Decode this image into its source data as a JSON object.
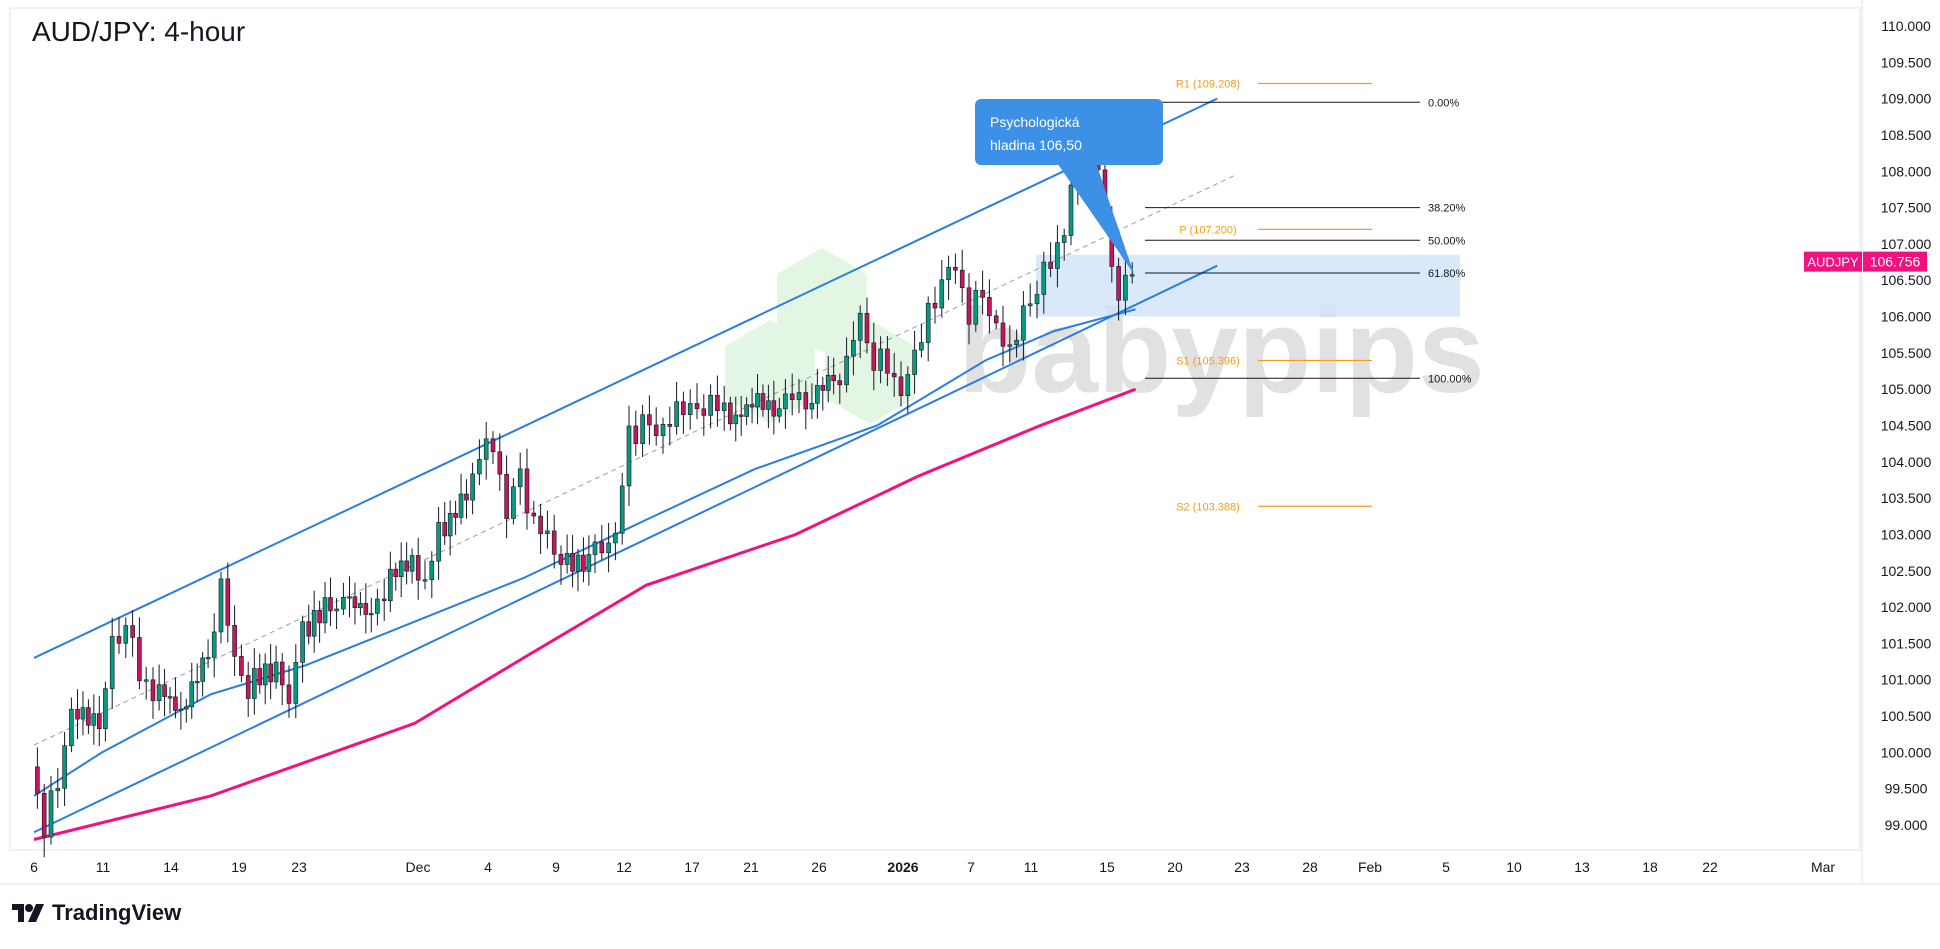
{
  "title": "AUD/JPY: 4-hour",
  "brand": {
    "logo_text": "TradingView",
    "watermark_text": "babypips"
  },
  "colors": {
    "channel": "#2a7de1",
    "ma_fast": "#2a7de1",
    "ma_slow": "#f2127f",
    "pivot": "#f59c1a",
    "fib": "#131722",
    "zone": "#cfe3f7",
    "callout_bg": "#3c91e6",
    "candle_up": "#089981",
    "candle_down": "#c2185b",
    "price_tag": "#f2127f"
  },
  "chart_data": {
    "type": "candlestick",
    "symbol": "AUDJPY",
    "timeframe": "4-hour",
    "last_price": "106.756",
    "ylim": [
      98.5,
      110.3
    ],
    "y_ticks": [
      "110.000",
      "109.500",
      "109.000",
      "108.500",
      "108.000",
      "107.500",
      "107.000",
      "106.500",
      "106.000",
      "105.500",
      "105.000",
      "104.500",
      "104.000",
      "103.500",
      "103.000",
      "102.500",
      "102.000",
      "101.500",
      "101.000",
      "100.500",
      "100.000",
      "99.500",
      "99.000"
    ],
    "x_ticks": [
      "6",
      "11",
      "14",
      "19",
      "23",
      "Dec",
      "4",
      "9",
      "12",
      "17",
      "21",
      "26",
      "2026",
      "7",
      "11",
      "15",
      "20",
      "23",
      "28",
      "Feb",
      "5",
      "10",
      "13",
      "18",
      "22",
      "Mar"
    ],
    "price_path": [
      [
        "2025-11-06",
        99.8
      ],
      [
        "2025-11-07",
        99.0
      ],
      [
        "2025-11-08",
        99.6
      ],
      [
        "2025-11-09",
        100.6
      ],
      [
        "2025-11-11",
        100.5
      ],
      [
        "2025-11-12",
        101.4
      ],
      [
        "2025-11-13",
        101.8
      ],
      [
        "2025-11-14",
        101.0
      ],
      [
        "2025-11-15",
        100.9
      ],
      [
        "2025-11-17",
        100.6
      ],
      [
        "2025-11-19",
        101.3
      ],
      [
        "2025-11-20",
        102.3
      ],
      [
        "2025-11-21",
        101.2
      ],
      [
        "2025-11-22",
        100.9
      ],
      [
        "2025-11-24",
        101.1
      ],
      [
        "2025-11-25",
        100.8
      ],
      [
        "2025-11-26",
        101.7
      ],
      [
        "2025-11-28",
        102.0
      ],
      [
        "2025-11-29",
        102.1
      ],
      [
        "2025-12-01",
        101.8
      ],
      [
        "2025-12-02",
        102.3
      ],
      [
        "2025-12-04",
        102.6
      ],
      [
        "2025-12-05",
        102.4
      ],
      [
        "2025-12-06",
        103.0
      ],
      [
        "2025-12-08",
        103.5
      ],
      [
        "2025-12-09",
        104.1
      ],
      [
        "2025-12-10",
        104.2
      ],
      [
        "2025-12-11",
        103.4
      ],
      [
        "2025-12-12",
        103.8
      ],
      [
        "2025-12-13",
        103.2
      ],
      [
        "2025-12-14",
        102.9
      ],
      [
        "2025-12-15",
        102.6
      ],
      [
        "2025-12-17",
        102.7
      ],
      [
        "2025-12-18",
        102.8
      ],
      [
        "2025-12-19",
        103.1
      ],
      [
        "2025-12-20",
        104.3
      ],
      [
        "2025-12-21",
        104.6
      ],
      [
        "2025-12-22",
        104.3
      ],
      [
        "2025-12-23",
        104.6
      ],
      [
        "2025-12-24",
        104.8
      ],
      [
        "2025-12-25",
        104.7
      ],
      [
        "2025-12-26",
        104.9
      ],
      [
        "2025-12-27",
        104.6
      ],
      [
        "2025-12-29",
        104.8
      ],
      [
        "2025-12-31",
        104.7
      ],
      [
        "2026-01-01",
        105.0
      ],
      [
        "2026-01-02",
        104.8
      ],
      [
        "2026-01-04",
        105.1
      ],
      [
        "2026-01-05",
        105.4
      ],
      [
        "2026-01-06",
        105.9
      ],
      [
        "2026-01-07",
        105.4
      ],
      [
        "2026-01-08",
        105.3
      ],
      [
        "2026-01-09",
        105.0
      ],
      [
        "2026-01-10",
        105.5
      ],
      [
        "2026-01-11",
        106.0
      ],
      [
        "2026-01-12",
        106.5
      ],
      [
        "2026-01-13",
        106.6
      ],
      [
        "2026-01-14",
        106.1
      ],
      [
        "2026-01-15",
        106.3
      ],
      [
        "2026-01-16",
        105.9
      ],
      [
        "2026-01-17",
        105.5
      ],
      [
        "2026-01-18",
        106.0
      ],
      [
        "2026-01-19",
        106.4
      ],
      [
        "2026-01-20",
        106.7
      ],
      [
        "2026-01-21",
        107.3
      ],
      [
        "2026-01-22",
        108.2
      ],
      [
        "2026-01-22 12:00",
        108.6
      ],
      [
        "2026-01-23",
        108.8
      ],
      [
        "2026-01-23 12:00",
        108.0
      ],
      [
        "2026-01-24",
        107.2
      ],
      [
        "2026-01-24 12:00",
        106.5
      ],
      [
        "2026-01-25",
        106.3
      ],
      [
        "2026-01-25 12:00",
        106.6
      ],
      [
        "2026-01-26",
        106.756
      ]
    ],
    "series": [
      {
        "name": "",
        "kind": "moving-average",
        "color": "blue",
        "points": [
          [
            "2025-11-06",
            99.4
          ],
          [
            "2025-11-11",
            100.0
          ],
          [
            "2025-11-19",
            100.8
          ],
          [
            "2025-11-26",
            101.2
          ],
          [
            "2025-12-04",
            101.8
          ],
          [
            "2025-12-12",
            102.4
          ],
          [
            "2025-12-21",
            103.2
          ],
          [
            "2025-12-29",
            103.9
          ],
          [
            "2026-01-07",
            104.5
          ],
          [
            "2026-01-15",
            105.4
          ],
          [
            "2026-01-20",
            105.8
          ],
          [
            "2026-01-26",
            106.1
          ]
        ]
      },
      {
        "name": "",
        "kind": "moving-average",
        "color": "pink",
        "points": [
          [
            "2025-11-06",
            98.8
          ],
          [
            "2025-11-19",
            99.4
          ],
          [
            "2025-12-04",
            100.4
          ],
          [
            "2025-12-12",
            101.3
          ],
          [
            "2025-12-21",
            102.3
          ],
          [
            "2026-01-01",
            103.0
          ],
          [
            "2026-01-10",
            103.8
          ],
          [
            "2026-01-19",
            104.5
          ],
          [
            "2026-01-26",
            105.0
          ]
        ]
      }
    ],
    "channel": {
      "upper": [
        [
          "2025-11-06",
          101.3
        ],
        [
          "2026-02-01",
          109.0
        ]
      ],
      "lower": [
        [
          "2025-11-06",
          98.9
        ],
        [
          "2026-02-01",
          106.7
        ]
      ],
      "mid_dashed": [
        [
          "2025-11-06",
          100.1
        ],
        [
          "2026-02-01",
          107.85
        ]
      ]
    },
    "pivot_levels": [
      {
        "label": "R1 (109.208)",
        "value": 109.208
      },
      {
        "label": "P (107.200)",
        "value": 107.2
      },
      {
        "label": "S1 (105.396)",
        "value": 105.396
      },
      {
        "label": "S2 (103.388)",
        "value": 103.388
      }
    ],
    "fib_levels": [
      {
        "label": "0.00%",
        "value": 108.95
      },
      {
        "label": "38.20%",
        "value": 107.5
      },
      {
        "label": "50.00%",
        "value": 107.05
      },
      {
        "label": "61.80%",
        "value": 106.6
      },
      {
        "label": "100.00%",
        "value": 105.15
      }
    ],
    "zone": {
      "from": 106.0,
      "to": 106.85
    },
    "annotation": {
      "lines": [
        "Psychologická",
        "hladina 106,50"
      ]
    }
  }
}
